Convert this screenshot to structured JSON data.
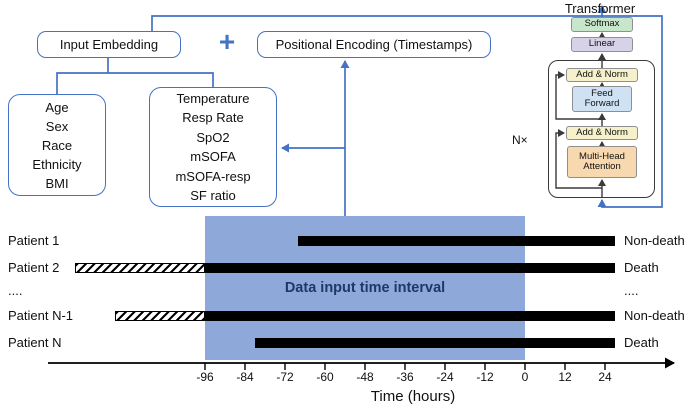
{
  "colors": {
    "accent_blue": "#4472c4",
    "region_fill": "#8ea8da",
    "region_text": "#1f3864",
    "softmax_fill": "#c8e6c9",
    "linear_fill": "#d8d2e8",
    "add_norm_fill": "#f6f0cb",
    "feed_forward_fill": "#cfe2f3",
    "attention_fill": "#f8d8ae",
    "bar_color": "#000000"
  },
  "architecture": {
    "input_embedding_label": "Input Embedding",
    "plus_symbol": "+",
    "positional_encoding_label": "Positional Encoding (Timestamps)",
    "demographics": [
      "Age",
      "Sex",
      "Race",
      "Ethnicity",
      "BMI"
    ],
    "vitals": [
      "Temperature",
      "Resp Rate",
      "SpO2",
      "mSOFA",
      "mSOFA-resp",
      "SF ratio"
    ],
    "transformer": {
      "title": "Transformer",
      "repeat_label": "N×",
      "softmax": "Softmax",
      "linear": "Linear",
      "add_norm_top": "Add & Norm",
      "feed_forward": "Feed Forward",
      "add_norm_bottom": "Add & Norm",
      "multi_head_attention": "Multi-Head Attention"
    }
  },
  "timeline": {
    "region_label": "Data input time interval",
    "data_window_hours": [
      -96,
      0
    ],
    "patients": [
      {
        "label": "Patient 1",
        "outcome": "Non-death",
        "bars": [
          {
            "type": "solid",
            "from": -68,
            "to": 27
          }
        ]
      },
      {
        "label": "Patient 2",
        "outcome": "Death",
        "bars": [
          {
            "type": "hatched",
            "from": -135,
            "to": -96
          },
          {
            "type": "solid",
            "from": -96,
            "to": 27
          }
        ]
      },
      {
        "label": "....",
        "outcome": "....",
        "bars": []
      },
      {
        "label": "Patient N-1",
        "outcome": "Non-death",
        "bars": [
          {
            "type": "hatched",
            "from": -123,
            "to": -96
          },
          {
            "type": "solid",
            "from": -96,
            "to": 27
          }
        ]
      },
      {
        "label": "Patient N",
        "outcome": "Death",
        "bars": [
          {
            "type": "solid",
            "from": -81,
            "to": 27
          }
        ]
      }
    ],
    "axis": {
      "tick_labels": [
        "-96",
        "-84",
        "-72",
        "-60",
        "-48",
        "-36",
        "-24",
        "-12",
        "0",
        "12",
        "24"
      ],
      "xlabel": "Time (hours)"
    }
  }
}
